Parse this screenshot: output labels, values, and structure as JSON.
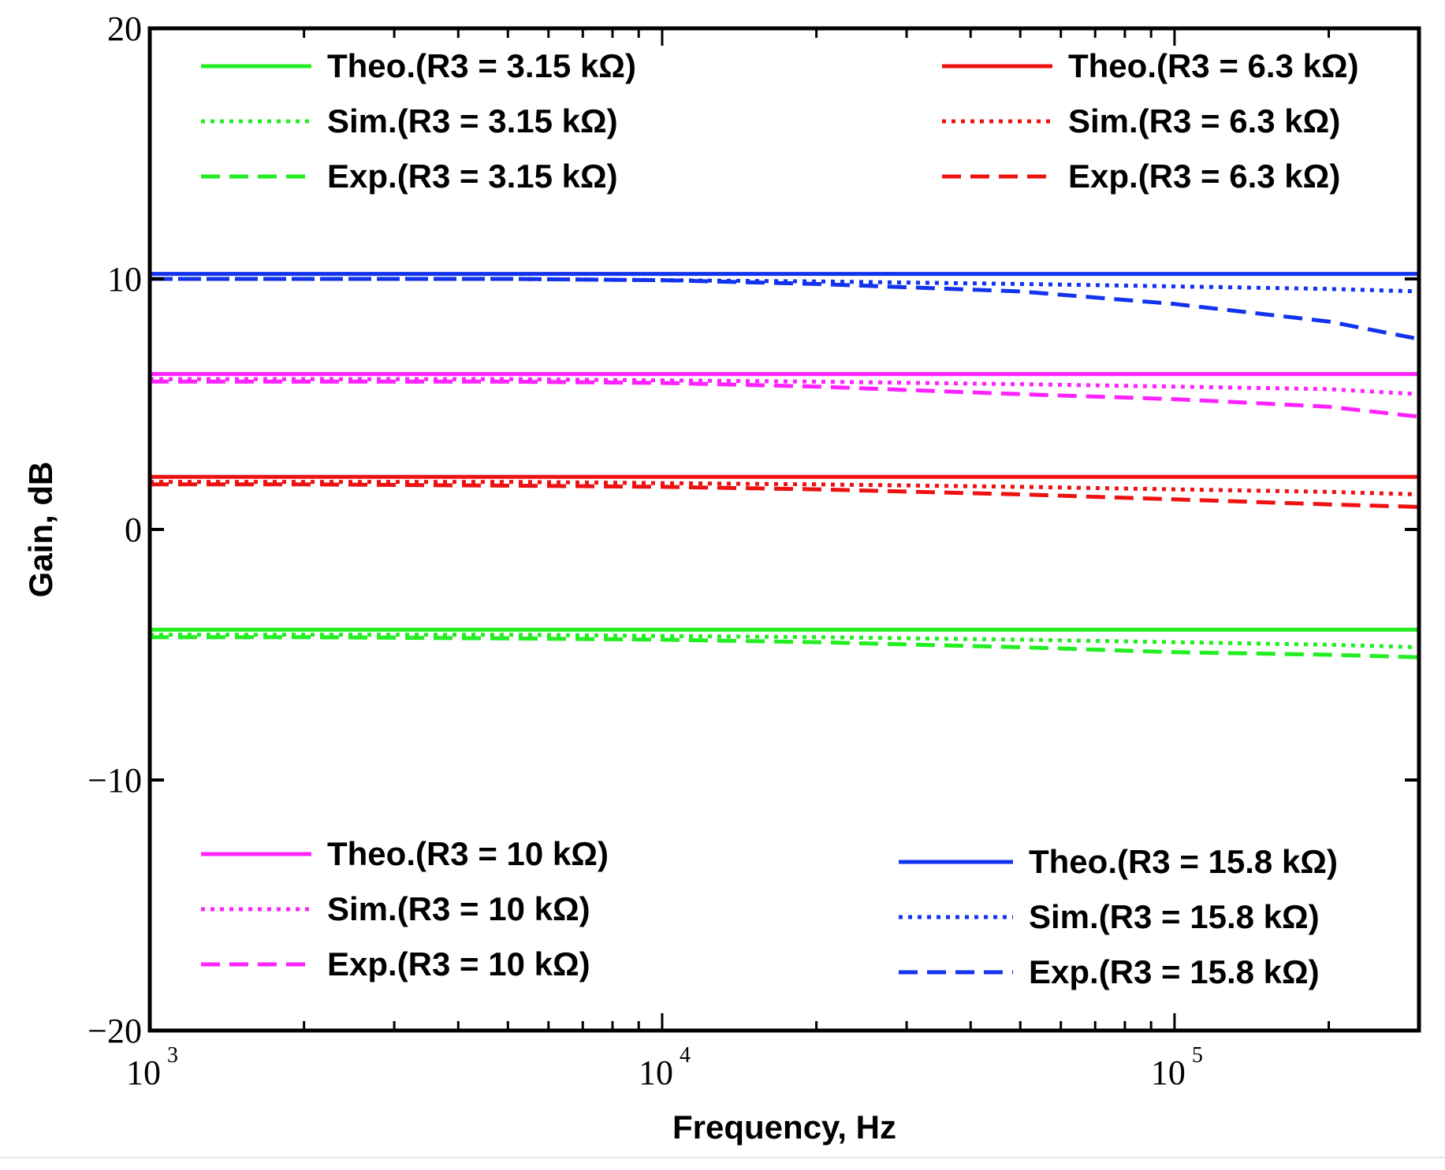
{
  "chart_data": {
    "type": "line",
    "title": "",
    "xlabel": "Frequency, Hz",
    "ylabel": "Gain, dB",
    "xscale": "log",
    "xlim": [
      1000,
      300000
    ],
    "ylim": [
      -20,
      20
    ],
    "yticks": [
      "20",
      "10",
      "0",
      "−10",
      "−20"
    ],
    "xticks": [
      {
        "base": "10",
        "exp": "3",
        "value": 1000
      },
      {
        "base": "10",
        "exp": "4",
        "value": 10000
      },
      {
        "base": "10",
        "exp": "5",
        "value": 100000
      }
    ],
    "grid": false,
    "colors": {
      "green": "#22ee22",
      "red": "#ee1111",
      "magenta": "#ff22ff",
      "blue": "#1133ee"
    },
    "x": [
      1000,
      2000,
      5000,
      10000,
      20000,
      50000,
      100000,
      200000,
      300000
    ],
    "series": [
      {
        "name": "Theo.(R3 = 3.15 kΩ)",
        "color": "green",
        "style": "solid",
        "values": [
          -4.0,
          -4.0,
          -4.0,
          -4.0,
          -4.0,
          -4.0,
          -4.0,
          -4.0,
          -4.0
        ]
      },
      {
        "name": "Sim.(R3 = 3.15 kΩ)",
        "color": "green",
        "style": "dotted",
        "values": [
          -4.2,
          -4.2,
          -4.2,
          -4.25,
          -4.3,
          -4.4,
          -4.5,
          -4.6,
          -4.7
        ]
      },
      {
        "name": "Exp.(R3 = 3.15 kΩ)",
        "color": "green",
        "style": "dashed",
        "values": [
          -4.3,
          -4.3,
          -4.35,
          -4.4,
          -4.5,
          -4.7,
          -4.9,
          -5.0,
          -5.1
        ]
      },
      {
        "name": "Theo.(R3 = 6.3 kΩ)",
        "color": "red",
        "style": "solid",
        "values": [
          2.1,
          2.1,
          2.1,
          2.1,
          2.1,
          2.1,
          2.1,
          2.1,
          2.1
        ]
      },
      {
        "name": "Sim.(R3 = 6.3 kΩ)",
        "color": "red",
        "style": "dotted",
        "values": [
          1.9,
          1.9,
          1.9,
          1.85,
          1.8,
          1.7,
          1.6,
          1.5,
          1.4
        ]
      },
      {
        "name": "Exp.(R3 = 6.3 kΩ)",
        "color": "red",
        "style": "dashed",
        "values": [
          1.8,
          1.8,
          1.75,
          1.7,
          1.6,
          1.4,
          1.2,
          1.0,
          0.9
        ]
      },
      {
        "name": "Theo.(R3 = 10 kΩ)",
        "color": "magenta",
        "style": "solid",
        "values": [
          6.2,
          6.2,
          6.2,
          6.2,
          6.2,
          6.2,
          6.2,
          6.2,
          6.2
        ]
      },
      {
        "name": "Sim.(R3 = 10 kΩ)",
        "color": "magenta",
        "style": "dotted",
        "values": [
          6.0,
          6.0,
          6.0,
          5.95,
          5.9,
          5.8,
          5.7,
          5.6,
          5.4
        ]
      },
      {
        "name": "Exp.(R3 = 10 kΩ)",
        "color": "magenta",
        "style": "dashed",
        "values": [
          5.9,
          5.9,
          5.9,
          5.85,
          5.7,
          5.4,
          5.2,
          4.9,
          4.5
        ]
      },
      {
        "name": "Theo.(R3 = 15.8 kΩ)",
        "color": "blue",
        "style": "solid",
        "values": [
          10.2,
          10.2,
          10.2,
          10.2,
          10.2,
          10.2,
          10.2,
          10.2,
          10.2
        ]
      },
      {
        "name": "Sim.(R3 = 15.8 kΩ)",
        "color": "blue",
        "style": "dotted",
        "values": [
          10.0,
          10.0,
          10.0,
          9.95,
          9.9,
          9.8,
          9.7,
          9.6,
          9.5
        ]
      },
      {
        "name": "Exp.(R3 = 15.8 kΩ)",
        "color": "blue",
        "style": "dashed",
        "values": [
          10.0,
          10.0,
          10.0,
          9.95,
          9.8,
          9.5,
          9.0,
          8.3,
          7.6
        ]
      }
    ],
    "legends": [
      {
        "placement": "top-left",
        "series": [
          0,
          1,
          2
        ]
      },
      {
        "placement": "top-right",
        "series": [
          3,
          4,
          5
        ]
      },
      {
        "placement": "bottom-left",
        "series": [
          6,
          7,
          8
        ]
      },
      {
        "placement": "bottom-right",
        "series": [
          9,
          10,
          11
        ]
      }
    ]
  }
}
